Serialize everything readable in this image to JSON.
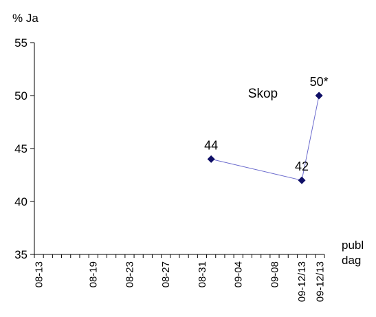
{
  "chart_data": {
    "type": "line",
    "title": "",
    "ylabel": "% Ja",
    "xlabel": "publ\ndag",
    "ylim": [
      35,
      55
    ],
    "yticks": [
      35,
      40,
      45,
      50,
      55
    ],
    "categories": [
      "08-13",
      "08-19",
      "08-23",
      "08-27",
      "08-31",
      "09-04",
      "09-08",
      "09-12/13",
      "09-12/13"
    ],
    "series": [
      {
        "name": "Skop",
        "points": [
          {
            "x": "09-01",
            "y": 44,
            "label": "44"
          },
          {
            "x": "09-11",
            "y": 42,
            "label": "42"
          },
          {
            "x": "09-12/13",
            "y": 50,
            "label": "50*"
          }
        ]
      }
    ],
    "grid": false,
    "legend": "none",
    "colors": {
      "line": "#6a6acd",
      "marker": "#0f0f66",
      "axis": "#000000"
    }
  }
}
